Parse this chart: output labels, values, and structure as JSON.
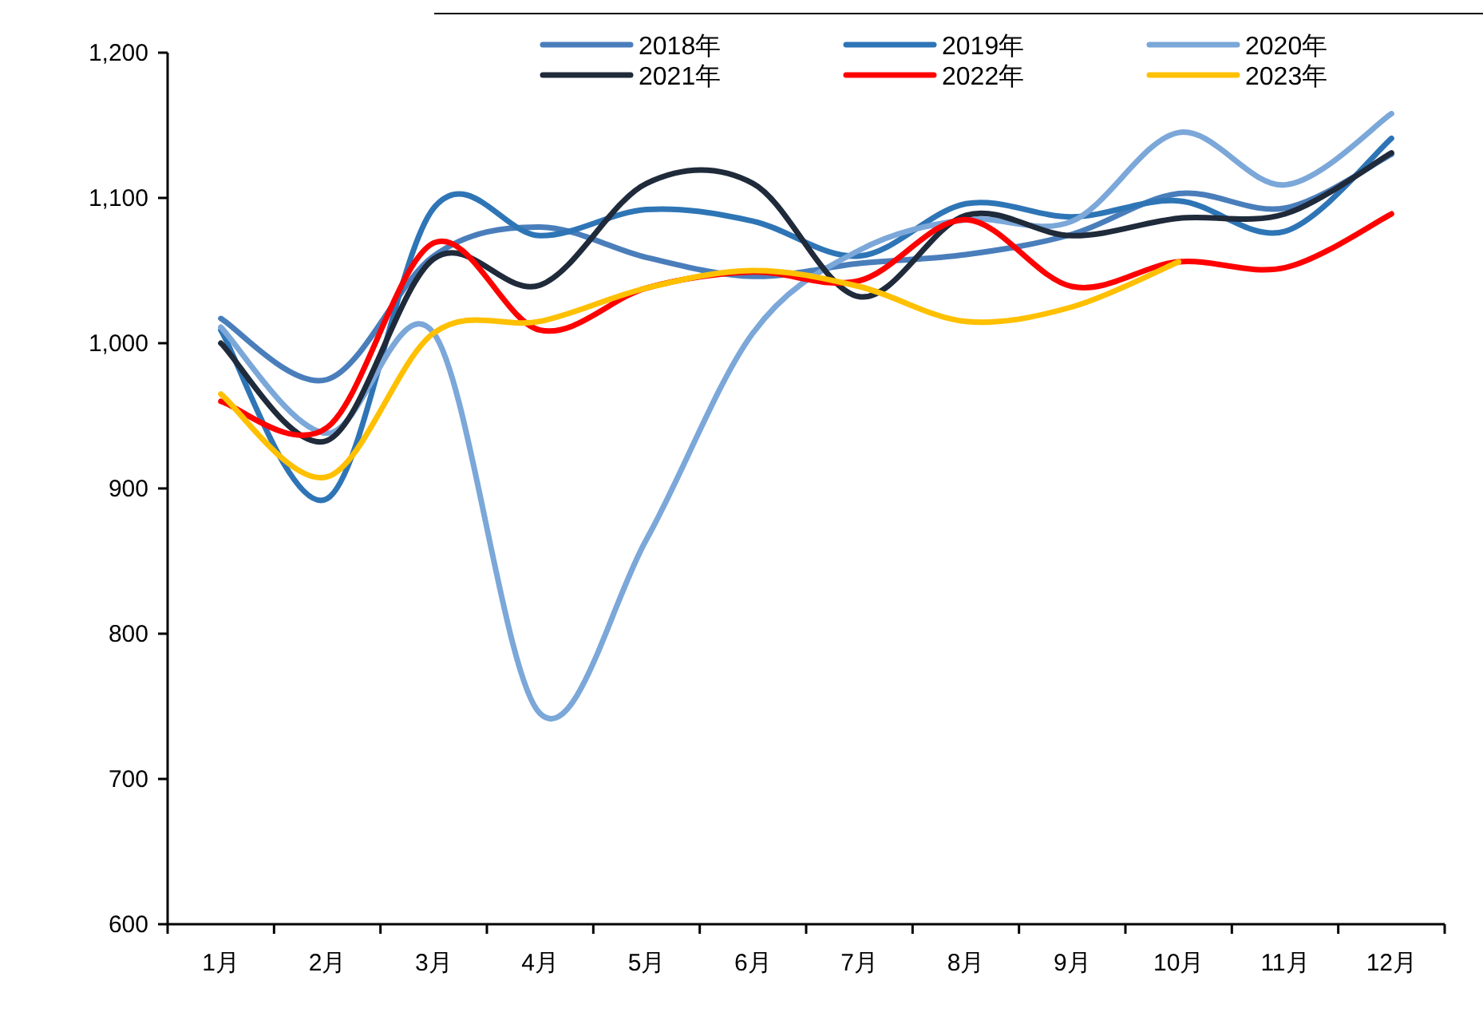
{
  "chart_data": {
    "type": "line",
    "categories": [
      "1月",
      "2月",
      "3月",
      "4月",
      "5月",
      "6月",
      "7月",
      "8月",
      "9月",
      "10月",
      "11月",
      "12月"
    ],
    "ylim": [
      600,
      1200
    ],
    "yticks": [
      600,
      700,
      800,
      900,
      {
        "value": 1000,
        "label": "1,000"
      },
      {
        "value": 1100,
        "label": "1,100"
      },
      {
        "value": 1200,
        "label": "1,200"
      }
    ],
    "legend": "top",
    "series": [
      {
        "name": "2018年",
        "color": "#4a7ebb",
        "values": [
          1017,
          975,
          1060,
          1080,
          1059,
          1046,
          1055,
          1061,
          1075,
          1103,
          1093,
          1130
        ]
      },
      {
        "name": "2019年",
        "color": "#2e75b6",
        "values": [
          1009,
          893,
          1093,
          1074,
          1092,
          1084,
          1060,
          1096,
          1087,
          1098,
          1077,
          1141
        ]
      },
      {
        "name": "2020年",
        "color": "#7ba7d9",
        "values": [
          1011,
          938,
          1007,
          745,
          865,
          1007,
          1064,
          1085,
          1084,
          1145,
          1109,
          1158
        ]
      },
      {
        "name": "2021年",
        "color": "#1f2a3a",
        "values": [
          1000,
          933,
          1058,
          1040,
          1110,
          1110,
          1032,
          1088,
          1074,
          1086,
          1089,
          1131
        ]
      },
      {
        "name": "2022年",
        "color": "#ff0000",
        "values": [
          960,
          942,
          1069,
          1009,
          1038,
          1049,
          1043,
          1085,
          1039,
          1056,
          1052,
          1089
        ]
      },
      {
        "name": "2023年",
        "color": "#ffc000",
        "values": [
          965,
          908,
          1007,
          1015,
          1038,
          1050,
          1039,
          1015,
          1025,
          1056,
          null,
          null
        ]
      }
    ]
  }
}
